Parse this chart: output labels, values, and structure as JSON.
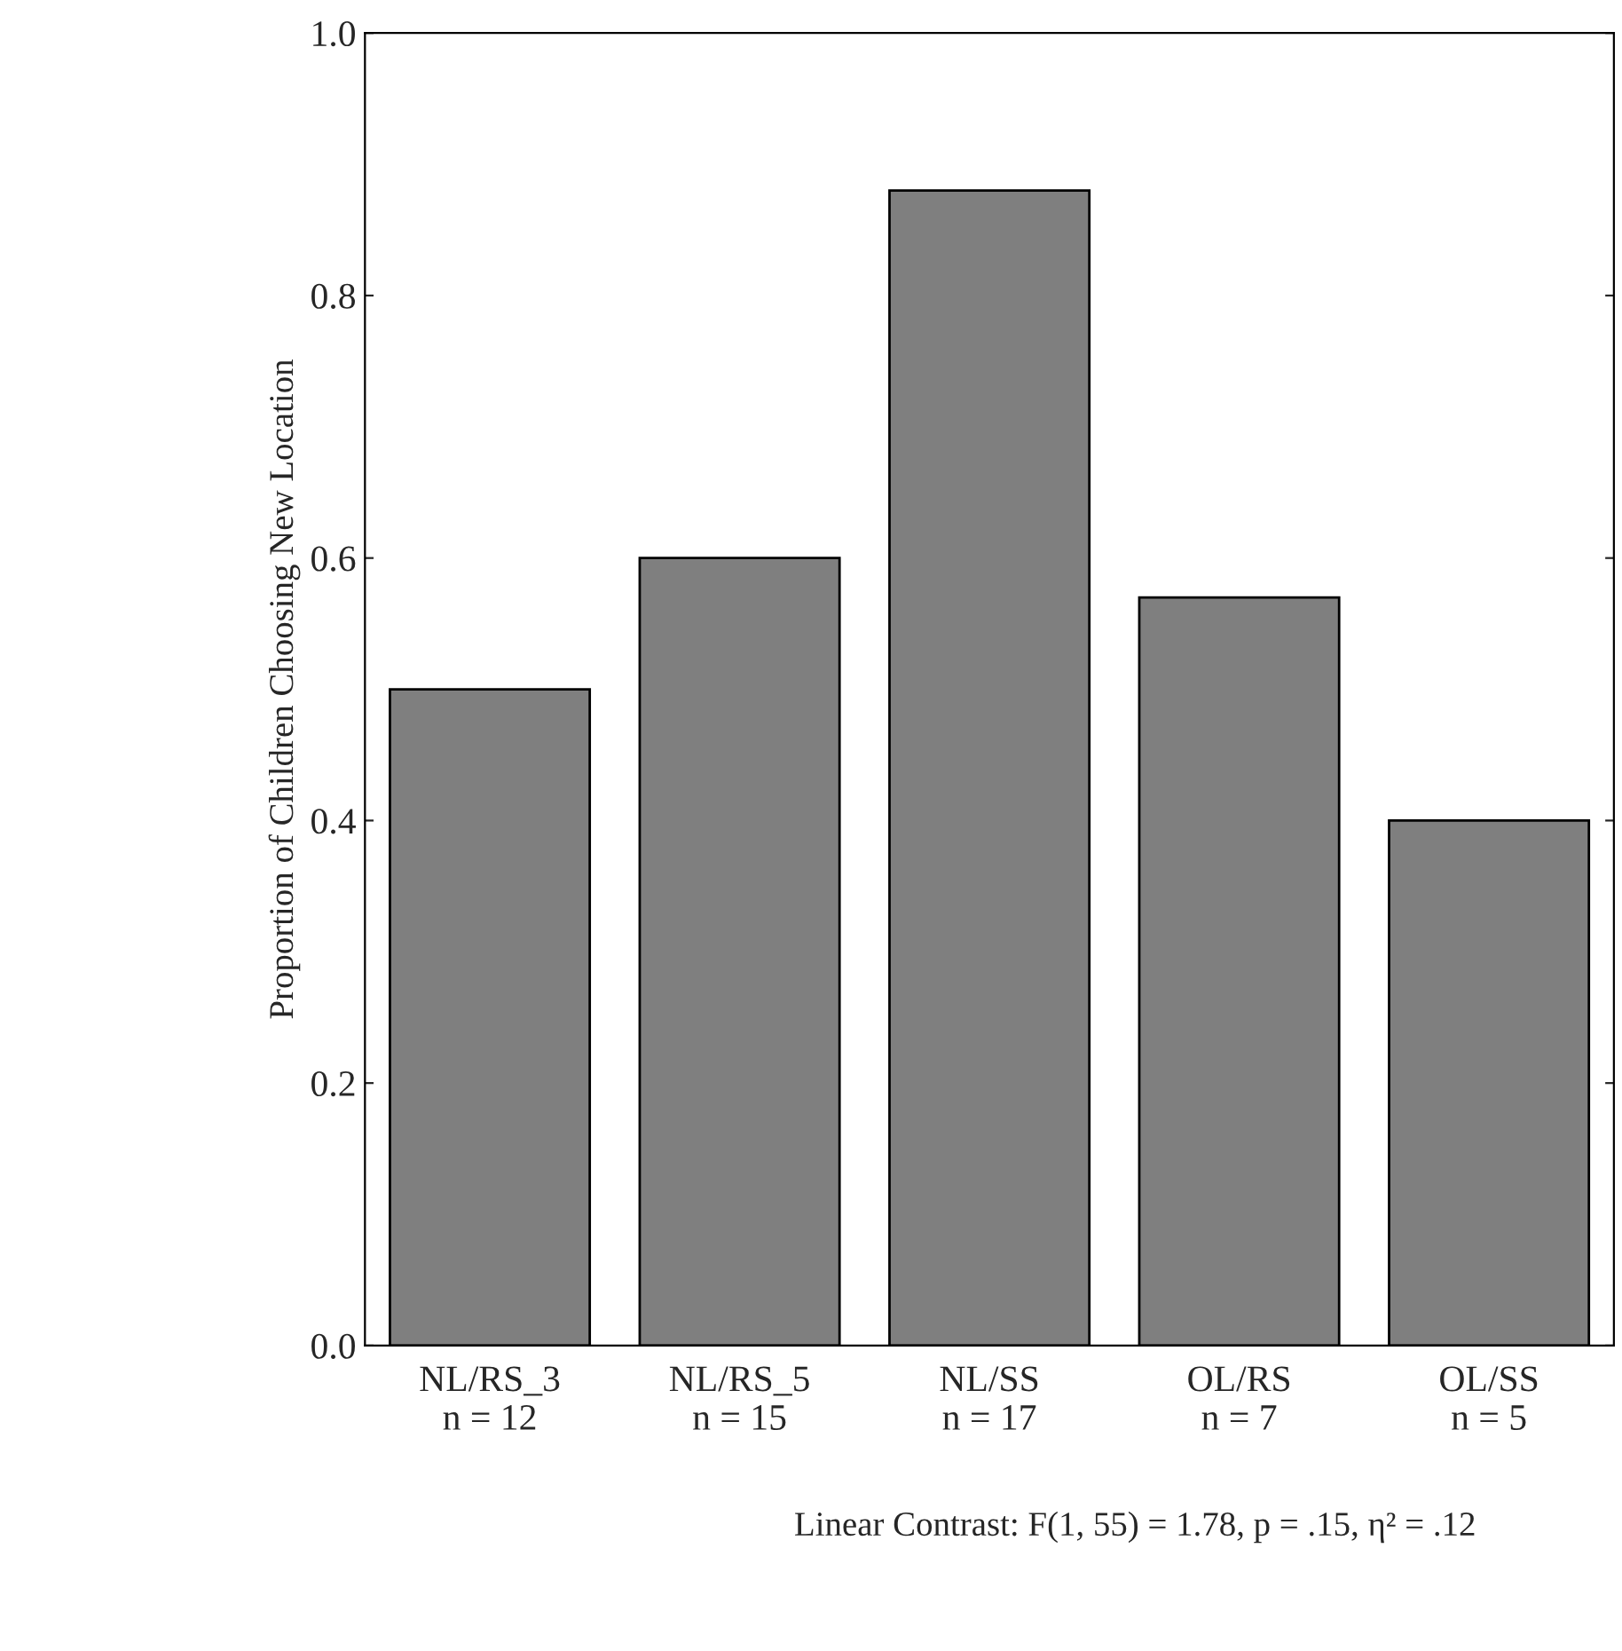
{
  "chart_data": {
    "type": "bar",
    "ylabel": "Proportion of Children Choosing New Location",
    "categories": [
      "NL/RS_3\nn = 12",
      "NL/RS_5\nn = 15",
      "NL/SS\nn = 17",
      "OL/RS\nn = 7",
      "OL/SS\nn = 5"
    ],
    "values": [
      0.5,
      0.6,
      0.88,
      0.57,
      0.4
    ],
    "color": "#7f7f7f",
    "ylim": [
      0,
      1
    ],
    "yticks": [
      {
        "value": 0,
        "label": "0.0"
      },
      0.2,
      0.4,
      0.6,
      0.8,
      {
        "value": 1,
        "label": "1.0"
      }
    ],
    "grid": false,
    "annotations": [
      "Linear Contrast: F(1, 55) = 1.78, p = .15, η² = .12"
    ]
  }
}
